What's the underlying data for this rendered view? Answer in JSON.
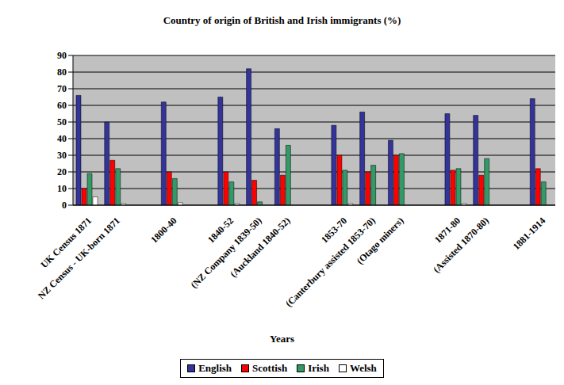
{
  "chart_data": {
    "type": "bar",
    "title": "Country of origin of British and Irish immigrants (%)",
    "x_label": "Years",
    "categories": [
      "UK Census 1871",
      "NZ Census - UK-born 1871",
      null,
      "1800-40",
      null,
      "1840-52",
      "(NZ Company 1839-50)",
      "(Auckland 1840-52)",
      null,
      "1853-70",
      "(Canterbury assisted 1853-70)",
      "(Otago miners)",
      null,
      "1871-80",
      "(Assisted 1870-80)",
      null,
      "1881-1914"
    ],
    "series": [
      {
        "name": "English",
        "color": "#333399",
        "values": [
          66,
          50,
          null,
          62,
          null,
          65,
          82,
          46,
          null,
          48,
          56,
          39,
          null,
          55,
          54,
          null,
          64
        ]
      },
      {
        "name": "Scottish",
        "color": "#ff0000",
        "values": [
          10,
          27,
          null,
          20,
          null,
          20,
          15,
          18,
          null,
          30,
          20,
          30,
          null,
          21,
          18,
          null,
          22
        ]
      },
      {
        "name": "Irish",
        "color": "#339966",
        "values": [
          19,
          22,
          null,
          16,
          null,
          14,
          2,
          36,
          null,
          21,
          24,
          31,
          null,
          22,
          28,
          null,
          14
        ]
      },
      {
        "name": "Welsh",
        "color": "#ffffff",
        "values": [
          5,
          1,
          null,
          1.5,
          null,
          1,
          null,
          null,
          null,
          1,
          null,
          null,
          null,
          1,
          null,
          null,
          null
        ]
      }
    ],
    "ylim": [
      0,
      90
    ],
    "yticks": [
      0,
      10,
      20,
      30,
      40,
      50,
      60,
      70,
      80,
      90
    ],
    "grid": true,
    "legend": "bottom"
  }
}
